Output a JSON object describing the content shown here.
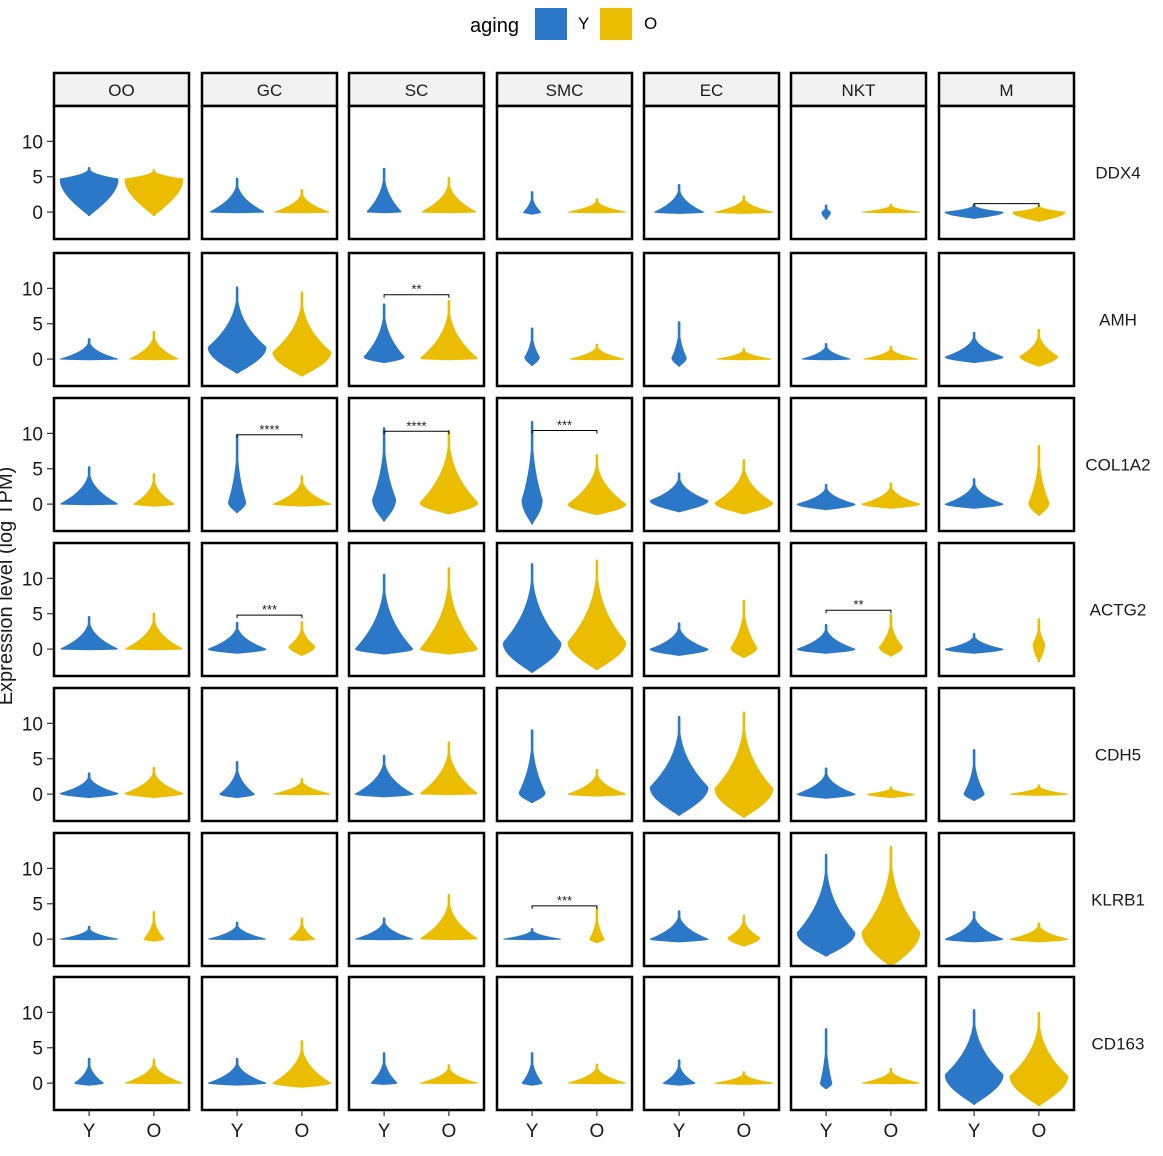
{
  "legend": {
    "title": "aging",
    "items": [
      {
        "label": "Y",
        "color": "#2c78c8"
      },
      {
        "label": "O",
        "color": "#ebbd00"
      }
    ]
  },
  "chart_data": {
    "type": "violin",
    "ylabel": "Expression level (log TPM)",
    "ylim": [
      -3.8,
      15
    ],
    "yticks": [
      0,
      5,
      10
    ],
    "x_categories": [
      "Y",
      "O"
    ],
    "cell_types": [
      "OO",
      "GC",
      "SC",
      "SMC",
      "EC",
      "NKT",
      "M"
    ],
    "genes": [
      "DDX4",
      "AMH",
      "COL1A2",
      "ACTG2",
      "CDH5",
      "KLRB1",
      "CD163"
    ],
    "series_colors": {
      "Y": "#2c78c8",
      "O": "#ebbd00"
    },
    "panels": [
      {
        "gene": "DDX4",
        "cell": "OO",
        "Y": {
          "min": -0.5,
          "max": 6.3,
          "mode": 4.7,
          "width": 1.0
        },
        "O": {
          "min": -0.5,
          "max": 6.0,
          "mode": 4.7,
          "width": 1.0
        }
      },
      {
        "gene": "DDX4",
        "cell": "GC",
        "Y": {
          "min": -0.1,
          "max": 4.8,
          "mode": 0,
          "width": 0.95
        },
        "O": {
          "min": -0.1,
          "max": 3.2,
          "mode": 0,
          "width": 0.95
        }
      },
      {
        "gene": "DDX4",
        "cell": "SC",
        "Y": {
          "min": -0.1,
          "max": 6.2,
          "mode": 0,
          "width": 0.6
        },
        "O": {
          "min": -0.1,
          "max": 4.9,
          "mode": 0,
          "width": 0.95
        }
      },
      {
        "gene": "DDX4",
        "cell": "SMC",
        "Y": {
          "min": -0.3,
          "max": 2.9,
          "mode": 0,
          "width": 0.3
        },
        "O": {
          "min": -0.1,
          "max": 1.9,
          "mode": 0,
          "width": 1.0
        }
      },
      {
        "gene": "DDX4",
        "cell": "EC",
        "Y": {
          "min": -0.2,
          "max": 3.9,
          "mode": 0,
          "width": 0.85
        },
        "O": {
          "min": -0.2,
          "max": 2.3,
          "mode": 0,
          "width": 1.0
        }
      },
      {
        "gene": "DDX4",
        "cell": "NKT",
        "Y": {
          "min": -1.0,
          "max": 1.0,
          "mode": 0,
          "width": 0.15
        },
        "O": {
          "min": -0.1,
          "max": 1.1,
          "mode": 0,
          "width": 1.0
        }
      },
      {
        "gene": "DDX4",
        "cell": "M",
        "Y": {
          "min": -0.9,
          "max": 1.1,
          "mode": 0,
          "width": 1.0
        },
        "O": {
          "min": -1.3,
          "max": 1.0,
          "mode": 0,
          "width": 0.9
        },
        "sig": {
          "label": "",
          "y": 1.2
        }
      },
      {
        "gene": "AMH",
        "cell": "OO",
        "Y": {
          "min": -0.1,
          "max": 2.9,
          "mode": 0,
          "width": 1.0
        },
        "O": {
          "min": -0.1,
          "max": 3.9,
          "mode": 0,
          "width": 0.85
        }
      },
      {
        "gene": "AMH",
        "cell": "GC",
        "Y": {
          "min": -2.0,
          "max": 10.2,
          "mode": 1.7,
          "width": 1.0
        },
        "O": {
          "min": -2.4,
          "max": 9.5,
          "mode": 1.0,
          "width": 1.0
        }
      },
      {
        "gene": "AMH",
        "cell": "SC",
        "Y": {
          "min": -0.5,
          "max": 7.8,
          "mode": 0.3,
          "width": 0.7
        },
        "O": {
          "min": -0.1,
          "max": 8.3,
          "mode": 0,
          "width": 1.0
        },
        "sig": {
          "label": "**",
          "y": 9.1
        }
      },
      {
        "gene": "AMH",
        "cell": "SMC",
        "Y": {
          "min": -0.9,
          "max": 4.4,
          "mode": 0.3,
          "width": 0.25
        },
        "O": {
          "min": -0.1,
          "max": 2.1,
          "mode": 0,
          "width": 0.95
        }
      },
      {
        "gene": "AMH",
        "cell": "EC",
        "Y": {
          "min": -1.0,
          "max": 5.3,
          "mode": 0.2,
          "width": 0.25
        },
        "O": {
          "min": -0.1,
          "max": 1.5,
          "mode": 0,
          "width": 0.95
        }
      },
      {
        "gene": "AMH",
        "cell": "NKT",
        "Y": {
          "min": -0.1,
          "max": 2.2,
          "mode": 0,
          "width": 0.85
        },
        "O": {
          "min": -0.1,
          "max": 1.8,
          "mode": 0,
          "width": 0.95
        }
      },
      {
        "gene": "AMH",
        "cell": "M",
        "Y": {
          "min": -0.5,
          "max": 3.8,
          "mode": 0.3,
          "width": 1.0
        },
        "O": {
          "min": -1.0,
          "max": 4.2,
          "mode": 0.4,
          "width": 0.65
        }
      },
      {
        "gene": "COL1A2",
        "cell": "OO",
        "Y": {
          "min": -0.1,
          "max": 5.3,
          "mode": 0,
          "width": 1.0
        },
        "O": {
          "min": -0.3,
          "max": 4.3,
          "mode": 0,
          "width": 0.7
        }
      },
      {
        "gene": "COL1A2",
        "cell": "GC",
        "Y": {
          "min": -1.2,
          "max": 9.8,
          "mode": 0.3,
          "width": 0.3
        },
        "O": {
          "min": -0.3,
          "max": 4.0,
          "mode": 0,
          "width": 1.0
        },
        "sig": {
          "label": "****",
          "y": 9.8
        }
      },
      {
        "gene": "COL1A2",
        "cell": "SC",
        "Y": {
          "min": -2.4,
          "max": 10.8,
          "mode": 0.7,
          "width": 0.4
        },
        "O": {
          "min": -1.4,
          "max": 10.4,
          "mode": 0.2,
          "width": 1.0
        },
        "sig": {
          "label": "****",
          "y": 10.3
        }
      },
      {
        "gene": "COL1A2",
        "cell": "SMC",
        "Y": {
          "min": -2.8,
          "max": 11.7,
          "mode": 0.6,
          "width": 0.35
        },
        "O": {
          "min": -1.5,
          "max": 7.0,
          "mode": 0,
          "width": 1.0
        },
        "sig": {
          "label": "***",
          "y": 10.4
        }
      },
      {
        "gene": "COL1A2",
        "cell": "EC",
        "Y": {
          "min": -1.1,
          "max": 4.4,
          "mode": 0.5,
          "width": 1.0
        },
        "O": {
          "min": -1.4,
          "max": 6.3,
          "mode": 0.2,
          "width": 1.0
        }
      },
      {
        "gene": "COL1A2",
        "cell": "NKT",
        "Y": {
          "min": -0.8,
          "max": 2.8,
          "mode": 0,
          "width": 1.0
        },
        "O": {
          "min": -0.6,
          "max": 3.0,
          "mode": 0,
          "width": 1.0
        }
      },
      {
        "gene": "COL1A2",
        "cell": "M",
        "Y": {
          "min": -0.6,
          "max": 3.6,
          "mode": 0,
          "width": 1.0
        },
        "O": {
          "min": -1.6,
          "max": 8.3,
          "mode": 0.2,
          "width": 0.35
        }
      },
      {
        "gene": "ACTG2",
        "cell": "OO",
        "Y": {
          "min": -0.1,
          "max": 4.6,
          "mode": 0,
          "width": 1.0
        },
        "O": {
          "min": -0.1,
          "max": 5.1,
          "mode": 0,
          "width": 1.0
        }
      },
      {
        "gene": "ACTG2",
        "cell": "GC",
        "Y": {
          "min": -0.6,
          "max": 3.8,
          "mode": 0,
          "width": 1.0
        },
        "O": {
          "min": -0.9,
          "max": 3.9,
          "mode": 0.4,
          "width": 0.45
        },
        "sig": {
          "label": "***",
          "y": 4.8
        }
      },
      {
        "gene": "ACTG2",
        "cell": "SC",
        "Y": {
          "min": -0.7,
          "max": 10.6,
          "mode": 0,
          "width": 1.0
        },
        "O": {
          "min": -0.7,
          "max": 11.5,
          "mode": 0,
          "width": 1.0
        }
      },
      {
        "gene": "ACTG2",
        "cell": "SMC",
        "Y": {
          "min": -3.3,
          "max": 12.1,
          "mode": 0.9,
          "width": 1.0
        },
        "O": {
          "min": -2.9,
          "max": 12.6,
          "mode": 1.0,
          "width": 1.0
        }
      },
      {
        "gene": "ACTG2",
        "cell": "EC",
        "Y": {
          "min": -0.9,
          "max": 3.7,
          "mode": 0,
          "width": 1.0
        },
        "O": {
          "min": -1.2,
          "max": 6.9,
          "mode": 0.2,
          "width": 0.45
        }
      },
      {
        "gene": "ACTG2",
        "cell": "NKT",
        "Y": {
          "min": -0.6,
          "max": 3.5,
          "mode": 0,
          "width": 1.0
        },
        "O": {
          "min": -1.0,
          "max": 4.9,
          "mode": 0.3,
          "width": 0.4
        },
        "sig": {
          "label": "**",
          "y": 5.5
        }
      },
      {
        "gene": "ACTG2",
        "cell": "M",
        "Y": {
          "min": -0.6,
          "max": 2.2,
          "mode": 0,
          "width": 1.0
        },
        "O": {
          "min": -1.8,
          "max": 4.3,
          "mode": 0.8,
          "width": 0.2
        }
      },
      {
        "gene": "CDH5",
        "cell": "OO",
        "Y": {
          "min": -0.5,
          "max": 3.0,
          "mode": 0.1,
          "width": 1.0
        },
        "O": {
          "min": -0.5,
          "max": 3.8,
          "mode": 0.1,
          "width": 1.0
        }
      },
      {
        "gene": "CDH5",
        "cell": "GC",
        "Y": {
          "min": -0.5,
          "max": 4.6,
          "mode": 0,
          "width": 0.6
        },
        "O": {
          "min": -0.1,
          "max": 2.2,
          "mode": 0,
          "width": 1.0
        }
      },
      {
        "gene": "CDH5",
        "cell": "SC",
        "Y": {
          "min": -0.4,
          "max": 5.5,
          "mode": 0,
          "width": 1.0
        },
        "O": {
          "min": -0.1,
          "max": 7.4,
          "mode": 0,
          "width": 1.0
        }
      },
      {
        "gene": "CDH5",
        "cell": "SMC",
        "Y": {
          "min": -1.2,
          "max": 9.1,
          "mode": 0.2,
          "width": 0.45
        },
        "O": {
          "min": -0.3,
          "max": 3.5,
          "mode": 0,
          "width": 1.0
        }
      },
      {
        "gene": "CDH5",
        "cell": "EC",
        "Y": {
          "min": -3.0,
          "max": 11.0,
          "mode": 1.0,
          "width": 1.0
        },
        "O": {
          "min": -3.3,
          "max": 11.6,
          "mode": 0.8,
          "width": 1.0
        }
      },
      {
        "gene": "CDH5",
        "cell": "NKT",
        "Y": {
          "min": -0.6,
          "max": 3.7,
          "mode": 0,
          "width": 1.0
        },
        "O": {
          "min": -0.5,
          "max": 1.0,
          "mode": 0,
          "width": 0.8
        }
      },
      {
        "gene": "CDH5",
        "cell": "M",
        "Y": {
          "min": -0.9,
          "max": 6.3,
          "mode": 0.1,
          "width": 0.35
        },
        "O": {
          "min": -0.2,
          "max": 1.3,
          "mode": 0,
          "width": 1.0
        }
      },
      {
        "gene": "KLRB1",
        "cell": "OO",
        "Y": {
          "min": -0.1,
          "max": 1.8,
          "mode": 0,
          "width": 1.0
        },
        "O": {
          "min": -0.3,
          "max": 3.9,
          "mode": 0,
          "width": 0.35
        }
      },
      {
        "gene": "KLRB1",
        "cell": "GC",
        "Y": {
          "min": -0.1,
          "max": 2.4,
          "mode": 0,
          "width": 1.0
        },
        "O": {
          "min": -0.2,
          "max": 3.0,
          "mode": 0,
          "width": 0.45
        }
      },
      {
        "gene": "KLRB1",
        "cell": "SC",
        "Y": {
          "min": -0.1,
          "max": 3.0,
          "mode": 0,
          "width": 1.0
        },
        "O": {
          "min": -0.1,
          "max": 6.3,
          "mode": 0,
          "width": 1.0
        }
      },
      {
        "gene": "KLRB1",
        "cell": "SMC",
        "Y": {
          "min": -0.1,
          "max": 1.5,
          "mode": 0,
          "width": 1.0
        },
        "O": {
          "min": -0.5,
          "max": 4.4,
          "mode": 0,
          "width": 0.25
        },
        "sig": {
          "label": "***",
          "y": 4.7
        }
      },
      {
        "gene": "KLRB1",
        "cell": "EC",
        "Y": {
          "min": -0.4,
          "max": 4.0,
          "mode": 0,
          "width": 1.0
        },
        "O": {
          "min": -1.0,
          "max": 3.4,
          "mode": 0.2,
          "width": 0.55
        }
      },
      {
        "gene": "KLRB1",
        "cell": "NKT",
        "Y": {
          "min": -2.4,
          "max": 12.0,
          "mode": 0.9,
          "width": 1.0
        },
        "O": {
          "min": -3.9,
          "max": 13.1,
          "mode": 1.0,
          "width": 1.0
        }
      },
      {
        "gene": "KLRB1",
        "cell": "M",
        "Y": {
          "min": -0.4,
          "max": 3.9,
          "mode": 0,
          "width": 1.0
        },
        "O": {
          "min": -0.4,
          "max": 2.3,
          "mode": 0,
          "width": 1.0
        }
      },
      {
        "gene": "CD163",
        "cell": "OO",
        "Y": {
          "min": -0.3,
          "max": 3.5,
          "mode": 0,
          "width": 0.5
        },
        "O": {
          "min": -0.1,
          "max": 3.4,
          "mode": 0,
          "width": 1.0
        }
      },
      {
        "gene": "CD163",
        "cell": "GC",
        "Y": {
          "min": -0.3,
          "max": 3.5,
          "mode": 0,
          "width": 1.0
        },
        "O": {
          "min": -0.6,
          "max": 6.0,
          "mode": 0,
          "width": 1.0
        }
      },
      {
        "gene": "CD163",
        "cell": "SC",
        "Y": {
          "min": -0.2,
          "max": 4.3,
          "mode": 0,
          "width": 0.45
        },
        "O": {
          "min": -0.1,
          "max": 2.6,
          "mode": 0,
          "width": 1.0
        }
      },
      {
        "gene": "CD163",
        "cell": "SMC",
        "Y": {
          "min": -0.3,
          "max": 4.3,
          "mode": 0,
          "width": 0.35
        },
        "O": {
          "min": -0.1,
          "max": 2.7,
          "mode": 0,
          "width": 1.0
        }
      },
      {
        "gene": "CD163",
        "cell": "EC",
        "Y": {
          "min": -0.3,
          "max": 3.3,
          "mode": 0,
          "width": 0.55
        },
        "O": {
          "min": -0.2,
          "max": 1.6,
          "mode": 0,
          "width": 1.0
        }
      },
      {
        "gene": "CD163",
        "cell": "NKT",
        "Y": {
          "min": -0.8,
          "max": 7.7,
          "mode": 0,
          "width": 0.2
        },
        "O": {
          "min": -0.1,
          "max": 2.1,
          "mode": 0,
          "width": 1.0
        }
      },
      {
        "gene": "CD163",
        "cell": "M",
        "Y": {
          "min": -3.0,
          "max": 10.4,
          "mode": 1.2,
          "width": 1.0
        },
        "O": {
          "min": -3.2,
          "max": 10.0,
          "mode": 1.0,
          "width": 1.0
        }
      }
    ]
  }
}
